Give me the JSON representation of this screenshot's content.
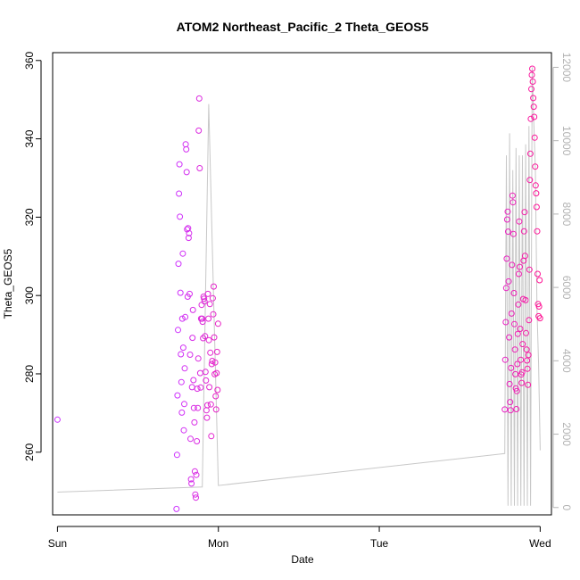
{
  "chart_data": {
    "type": "scatter",
    "title": "ATOM2 Northeast_Pacific_2 Theta_GEOS5",
    "xlabel": "Date",
    "ylabel": "Theta_GEOS5",
    "x_unit": "days since Sunday 00:00",
    "xlim": [
      -0.03,
      3.07
    ],
    "ylim": [
      244,
      362
    ],
    "y2lim": [
      -200,
      12400
    ],
    "x_ticks": [
      {
        "value": 0,
        "label": "Sun"
      },
      {
        "value": 1,
        "label": "Mon"
      },
      {
        "value": 2,
        "label": "Tue"
      },
      {
        "value": 3,
        "label": "Wed"
      }
    ],
    "y_ticks": [
      260,
      280,
      300,
      320,
      340,
      360
    ],
    "y2_ticks": [
      0,
      2000,
      4000,
      6000,
      8000,
      10000,
      12000
    ],
    "colors": {
      "points_start": "#cc33ff",
      "points_end": "#ff1493",
      "altitude_line": "#c8c8c8"
    },
    "series": [
      {
        "kind": "points",
        "axis": "left",
        "x": [
          0.0,
          0.74,
          0.743,
          0.746,
          0.749,
          0.752,
          0.755,
          0.758,
          0.761,
          0.764,
          0.767,
          0.77,
          0.773,
          0.776,
          0.779,
          0.782,
          0.785,
          0.788,
          0.791,
          0.794,
          0.797,
          0.8,
          0.803,
          0.806,
          0.809,
          0.812,
          0.815,
          0.818,
          0.821,
          0.824,
          0.827,
          0.83,
          0.833,
          0.836,
          0.839,
          0.842,
          0.845,
          0.848,
          0.851,
          0.854,
          0.857,
          0.86,
          0.863,
          0.866,
          0.869,
          0.872,
          0.875,
          0.878,
          0.881,
          0.884,
          0.887,
          0.89,
          0.893,
          0.896,
          0.899,
          0.902,
          0.905,
          0.908,
          0.911,
          0.914,
          0.917,
          0.92,
          0.923,
          0.926,
          0.929,
          0.932,
          0.935,
          0.938,
          0.941,
          0.944,
          0.947,
          0.95,
          0.953,
          0.956,
          0.959,
          0.962,
          0.965,
          0.968,
          0.971,
          0.974,
          0.977,
          0.98,
          0.983,
          0.986,
          0.989,
          0.992,
          0.995,
          0.998,
          2.78,
          2.783,
          2.786,
          2.789,
          2.792,
          2.795,
          2.798,
          2.801,
          2.804,
          2.807,
          2.81,
          2.813,
          2.816,
          2.819,
          2.822,
          2.825,
          2.828,
          2.831,
          2.834,
          2.837,
          2.84,
          2.843,
          2.846,
          2.849,
          2.852,
          2.855,
          2.858,
          2.861,
          2.864,
          2.867,
          2.87,
          2.873,
          2.876,
          2.879,
          2.882,
          2.885,
          2.888,
          2.891,
          2.894,
          2.897,
          2.9,
          2.903,
          2.906,
          2.909,
          2.912,
          2.915,
          2.918,
          2.921,
          2.924,
          2.927,
          2.93,
          2.933,
          2.936,
          2.939,
          2.942,
          2.945,
          2.948,
          2.951,
          2.954,
          2.957,
          2.96,
          2.963,
          2.966,
          2.969,
          2.972,
          2.975,
          2.978,
          2.981,
          2.984,
          2.987,
          2.99,
          2.993,
          2.996,
          2.999
        ],
        "y": [
          268.3,
          245.5,
          259.3,
          274.5,
          291.2,
          308.1,
          326.0,
          333.5,
          320.1,
          300.7,
          285.0,
          277.9,
          270.1,
          294.1,
          310.7,
          286.7,
          265.6,
          272.3,
          281.4,
          294.5,
          338.6,
          337.3,
          331.5,
          316.9,
          299.7,
          317.2,
          314.7,
          315.9,
          300.4,
          284.9,
          263.4,
          253.1,
          252.0,
          276.6,
          289.2,
          296.3,
          278.4,
          271.3,
          267.6,
          255.1,
          249.2,
          248.4,
          254.2,
          262.8,
          276.2,
          271.3,
          283.9,
          342.1,
          350.3,
          332.5,
          280.2,
          276.5,
          294.1,
          297.6,
          294.1,
          293.3,
          289.1,
          299.7,
          299.2,
          298.5,
          289.6,
          280.5,
          278.3,
          270.7,
          268.8,
          272.0,
          300.4,
          294.1,
          288.6,
          276.6,
          297.8,
          285.4,
          272.2,
          264.1,
          282.5,
          283.3,
          299.3,
          295.2,
          302.3,
          289.3,
          279.9,
          282.9,
          274.3,
          270.9,
          280.2,
          285.6,
          275.9,
          292.8,
          270.9,
          283.6,
          293.2,
          301.9,
          309.4,
          319.4,
          321.4,
          316.3,
          303.6,
          289.3,
          277.4,
          272.8,
          270.7,
          281.5,
          295.4,
          307.8,
          325.5,
          323.8,
          315.7,
          300.6,
          292.7,
          286.2,
          279.9,
          276.3,
          271.0,
          275.6,
          282.5,
          290.2,
          297.7,
          305.5,
          318.9,
          307.3,
          291.5,
          283.6,
          279.8,
          277.7,
          280.4,
          287.6,
          299.1,
          308.9,
          316.4,
          321.3,
          310.1,
          298.8,
          290.4,
          286.2,
          283.4,
          281.3,
          277.2,
          284.8,
          293.7,
          306.6,
          329.5,
          336.2,
          345.1,
          352.7,
          356.3,
          357.9,
          354.6,
          350.4,
          348.2,
          345.6,
          340.3,
          332.9,
          328.1,
          326.1,
          322.6,
          316.4,
          305.5,
          297.8,
          294.7,
          297.2,
          303.9,
          294.2
        ]
      },
      {
        "kind": "line",
        "axis": "right",
        "x": [
          0.0,
          0.9,
          0.94,
          1.0,
          2.78,
          2.79,
          2.8,
          2.81,
          2.82,
          2.83,
          2.84,
          2.85,
          2.86,
          2.87,
          2.88,
          2.89,
          2.9,
          2.91,
          2.92,
          2.93,
          2.94,
          2.95,
          2.96,
          2.97,
          2.98,
          2.99,
          3.0
        ],
        "y": [
          420,
          560,
          11000,
          600,
          1470,
          9600,
          50,
          10200,
          50,
          9200,
          50,
          9800,
          50,
          9600,
          50,
          9600,
          50,
          9900,
          50,
          10400,
          50,
          12000,
          10500,
          9200,
          5400,
          3900,
          1560
        ]
      }
    ]
  }
}
